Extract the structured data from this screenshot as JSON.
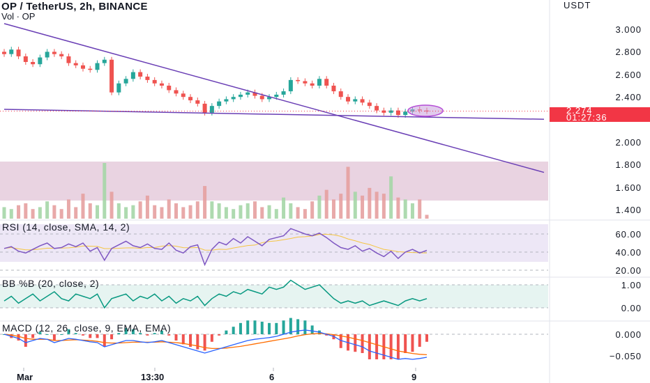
{
  "header": {
    "title": "OP / TetherUS, 2h, BINANCE",
    "volume_label": "Vol · OP",
    "currency": "USDT"
  },
  "price_axis": {
    "ticks": [
      "3.000",
      "2.800",
      "2.600",
      "2.400",
      "2.000",
      "1.800",
      "1.600",
      "1.400"
    ]
  },
  "last_price": {
    "value": "2.274",
    "countdown": "01:27:36"
  },
  "time_axis": {
    "labels": [
      "Mar",
      "13:30",
      "6",
      "9"
    ]
  },
  "indicators": {
    "rsi": {
      "label": "RSI (14, close, SMA, 14, 2)",
      "ticks": [
        "60.00",
        "40.00",
        "20.00"
      ]
    },
    "bb": {
      "label": "BB %B (20, close, 2)",
      "ticks": [
        "1.00",
        "0.00"
      ]
    },
    "macd": {
      "label": "MACD (12, 26, close, 9, EMA, EMA)",
      "ticks": [
        "0.000",
        "−0.050"
      ]
    }
  },
  "colors": {
    "up": "#26a69a",
    "down": "#ef5350",
    "trendline": "#6a3fb5",
    "rsi_line": "#7e57c2",
    "rsi_band": "#ede7f6",
    "bb_line": "#089981",
    "bb_band": "#e6f4f1",
    "macd_line": "#2962ff",
    "signal_line": "#ff6d00",
    "last_price": "#f23645",
    "highlight_box": "#e9d3e1"
  },
  "chart_data": {
    "type": "candlestick",
    "symbol": "OP / TetherUS",
    "interval": "2h",
    "exchange": "BINANCE",
    "close_series": [
      2.78,
      2.82,
      2.76,
      2.71,
      2.69,
      2.75,
      2.8,
      2.78,
      2.76,
      2.7,
      2.68,
      2.65,
      2.64,
      2.7,
      2.73,
      2.44,
      2.52,
      2.56,
      2.62,
      2.58,
      2.55,
      2.52,
      2.5,
      2.46,
      2.43,
      2.4,
      2.37,
      2.34,
      2.26,
      2.32,
      2.36,
      2.38,
      2.4,
      2.42,
      2.44,
      2.41,
      2.38,
      2.4,
      2.42,
      2.45,
      2.55,
      2.54,
      2.52,
      2.5,
      2.56,
      2.5,
      2.45,
      2.4,
      2.36,
      2.38,
      2.35,
      2.32,
      2.28,
      2.26,
      2.28,
      2.24,
      2.27,
      2.29,
      2.28,
      2.274
    ],
    "last_price": 2.274,
    "price_ylim": [
      1.35,
      3.15
    ],
    "trendlines": [
      {
        "from": [
          0,
          3.05
        ],
        "to": [
          60,
          2.0
        ]
      },
      {
        "from": [
          0,
          2.29
        ],
        "to": [
          60,
          2.22
        ]
      }
    ],
    "volume": [
      0.6,
      0.5,
      0.7,
      0.8,
      0.5,
      0.6,
      0.9,
      0.7,
      0.5,
      1.0,
      0.6,
      1.3,
      0.8,
      0.7,
      2.9,
      1.4,
      0.8,
      0.6,
      0.7,
      0.9,
      1.2,
      0.7,
      0.6,
      1.0,
      0.8,
      0.6,
      0.7,
      0.9,
      1.7,
      0.9,
      0.8,
      0.6,
      0.5,
      0.7,
      0.8,
      0.9,
      0.6,
      0.7,
      0.5,
      1.1,
      0.8,
      0.6,
      0.5,
      0.9,
      1.2,
      1.5,
      1.0,
      1.3,
      2.7,
      1.4,
      1.2,
      1.6,
      1.4,
      1.3,
      2.2,
      1.1,
      1.0,
      0.8,
      1.0,
      0.2
    ],
    "rsi": [
      44,
      46,
      41,
      39,
      43,
      47,
      50,
      44,
      45,
      49,
      46,
      50,
      41,
      45,
      31,
      44,
      48,
      52,
      47,
      45,
      49,
      44,
      43,
      50,
      42,
      39,
      46,
      48,
      26,
      43,
      51,
      48,
      55,
      50,
      57,
      52,
      47,
      54,
      56,
      58,
      66,
      63,
      60,
      58,
      61,
      56,
      50,
      45,
      43,
      47,
      41,
      44,
      39,
      35,
      41,
      33,
      40,
      43,
      39,
      42
    ],
    "rsi_ticks": [
      60,
      40,
      20
    ],
    "bb_percent_b": [
      0.3,
      0.5,
      0.2,
      0.4,
      0.6,
      0.3,
      0.5,
      0.7,
      0.4,
      0.3,
      0.6,
      0.5,
      0.4,
      0.6,
      0.0,
      0.4,
      0.5,
      0.6,
      0.3,
      0.5,
      0.4,
      0.6,
      0.3,
      0.5,
      0.2,
      0.4,
      0.3,
      0.5,
      0.1,
      0.4,
      0.6,
      0.5,
      0.7,
      0.6,
      0.8,
      0.7,
      0.6,
      0.9,
      0.8,
      0.9,
      1.2,
      1.0,
      0.8,
      0.9,
      1.0,
      0.7,
      0.4,
      0.2,
      0.3,
      0.2,
      0.3,
      0.1,
      0.2,
      0.3,
      0.2,
      0.1,
      0.3,
      0.4,
      0.3,
      0.4
    ],
    "bb_ticks": [
      1.0,
      0.0
    ],
    "macd": [
      0.0,
      -0.005,
      -0.01,
      -0.02,
      -0.015,
      -0.01,
      -0.012,
      -0.02,
      -0.015,
      -0.01,
      -0.012,
      -0.015,
      -0.018,
      -0.02,
      -0.03,
      -0.025,
      -0.02,
      -0.015,
      -0.015,
      -0.018,
      -0.02,
      -0.018,
      -0.015,
      -0.02,
      -0.025,
      -0.03,
      -0.035,
      -0.04,
      -0.045,
      -0.04,
      -0.035,
      -0.03,
      -0.025,
      -0.02,
      -0.015,
      -0.012,
      -0.01,
      -0.008,
      -0.005,
      0.0,
      0.005,
      0.008,
      0.01,
      0.008,
      0.005,
      0.0,
      -0.005,
      -0.015,
      -0.02,
      -0.025,
      -0.03,
      -0.04,
      -0.045,
      -0.05,
      -0.055,
      -0.06,
      -0.058,
      -0.06,
      -0.058,
      -0.055
    ],
    "signal": [
      0.0,
      -0.002,
      -0.005,
      -0.01,
      -0.012,
      -0.012,
      -0.012,
      -0.015,
      -0.015,
      -0.014,
      -0.013,
      -0.014,
      -0.015,
      -0.017,
      -0.02,
      -0.021,
      -0.021,
      -0.02,
      -0.019,
      -0.019,
      -0.019,
      -0.019,
      -0.018,
      -0.019,
      -0.02,
      -0.022,
      -0.025,
      -0.028,
      -0.032,
      -0.034,
      -0.034,
      -0.033,
      -0.031,
      -0.029,
      -0.026,
      -0.023,
      -0.02,
      -0.017,
      -0.014,
      -0.011,
      -0.008,
      -0.004,
      -0.001,
      0.001,
      0.002,
      0.001,
      -0.001,
      -0.004,
      -0.007,
      -0.011,
      -0.015,
      -0.02,
      -0.025,
      -0.03,
      -0.035,
      -0.04,
      -0.043,
      -0.046,
      -0.048,
      -0.049
    ],
    "macd_ylim": [
      -0.065,
      0.015
    ]
  }
}
